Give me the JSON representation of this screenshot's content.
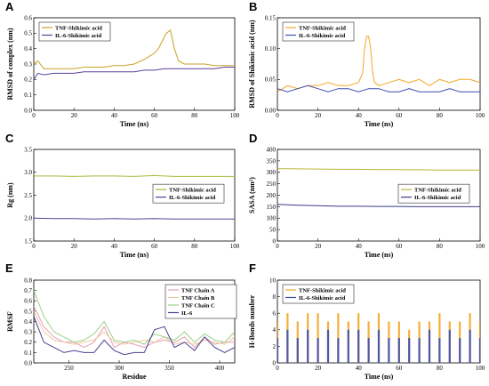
{
  "colors": {
    "tnf": "#c9a227",
    "il6": "#5a3f9e",
    "tnf_c": "#a8b83a",
    "sasa_tnf": "#b8b83a",
    "sasa_il6": "#3a3a8a",
    "tnf_bright": "#f5a623",
    "il6_hbond": "#3b4fb0",
    "chainA": "#e3a0b8",
    "chainB": "#f0c8a0",
    "chainC": "#9bd08a",
    "il6_rmsf": "#4a3f8f"
  },
  "chart_data": [
    {
      "panel": "A",
      "type": "line",
      "xlabel": "Time (ns)",
      "ylabel": "RMSD of complex (nm)",
      "xlim": [
        0,
        100
      ],
      "ylim": [
        0,
        0.6
      ],
      "xticks": [
        0,
        20,
        40,
        60,
        80,
        100
      ],
      "yticks": [
        0.0,
        0.1,
        0.2,
        0.3,
        0.4,
        0.5,
        0.6
      ],
      "legend_position": "top-left",
      "series": [
        {
          "name": "TNF-Shikimic acid",
          "color_key": "tnf",
          "x": [
            0,
            2,
            5,
            10,
            15,
            20,
            25,
            30,
            35,
            40,
            45,
            50,
            55,
            60,
            62,
            64,
            66,
            68,
            70,
            72,
            75,
            80,
            85,
            90,
            95,
            100
          ],
          "y": [
            0.3,
            0.32,
            0.27,
            0.27,
            0.27,
            0.27,
            0.28,
            0.28,
            0.28,
            0.29,
            0.29,
            0.3,
            0.33,
            0.37,
            0.4,
            0.45,
            0.5,
            0.52,
            0.4,
            0.32,
            0.3,
            0.3,
            0.3,
            0.29,
            0.29,
            0.29
          ]
        },
        {
          "name": "IL-6-Shikimic acid",
          "color_key": "il6",
          "x": [
            0,
            2,
            5,
            10,
            15,
            20,
            25,
            30,
            35,
            40,
            45,
            50,
            55,
            60,
            65,
            70,
            75,
            80,
            85,
            90,
            95,
            100
          ],
          "y": [
            0.2,
            0.24,
            0.23,
            0.24,
            0.24,
            0.24,
            0.25,
            0.25,
            0.25,
            0.25,
            0.25,
            0.25,
            0.26,
            0.26,
            0.27,
            0.27,
            0.27,
            0.27,
            0.27,
            0.27,
            0.28,
            0.28
          ]
        }
      ]
    },
    {
      "panel": "B",
      "type": "line",
      "xlabel": "Time (ns)",
      "ylabel": "RMSD of Shikimic acid (nm)",
      "xlim": [
        0,
        100
      ],
      "ylim": [
        0,
        0.15
      ],
      "xticks": [
        0,
        20,
        40,
        60,
        80,
        100
      ],
      "yticks": [
        0.0,
        0.05,
        0.1,
        0.15
      ],
      "legend_position": "top-left",
      "series": [
        {
          "name": "TNF-Shikimic acid",
          "color_key": "tnf_bright",
          "x": [
            0,
            5,
            10,
            15,
            20,
            25,
            30,
            35,
            40,
            42,
            43,
            44,
            45,
            46,
            47,
            48,
            50,
            55,
            60,
            65,
            70,
            75,
            80,
            85,
            90,
            95,
            100
          ],
          "y": [
            0.03,
            0.04,
            0.035,
            0.04,
            0.04,
            0.045,
            0.04,
            0.04,
            0.045,
            0.06,
            0.1,
            0.12,
            0.12,
            0.1,
            0.06,
            0.045,
            0.04,
            0.045,
            0.05,
            0.045,
            0.05,
            0.04,
            0.05,
            0.045,
            0.05,
            0.05,
            0.045
          ]
        },
        {
          "name": "IL-6-Shikimic acid",
          "color_key": "il6_hbond",
          "x": [
            0,
            5,
            10,
            15,
            20,
            25,
            30,
            35,
            40,
            45,
            50,
            55,
            60,
            65,
            70,
            75,
            80,
            85,
            90,
            95,
            100
          ],
          "y": [
            0.035,
            0.03,
            0.035,
            0.04,
            0.035,
            0.03,
            0.035,
            0.035,
            0.03,
            0.035,
            0.035,
            0.03,
            0.03,
            0.035,
            0.03,
            0.03,
            0.03,
            0.035,
            0.03,
            0.03,
            0.03
          ]
        }
      ]
    },
    {
      "panel": "C",
      "type": "line",
      "xlabel": "Time (ns)",
      "ylabel": "Rg (nm)",
      "xlim": [
        0,
        100
      ],
      "ylim": [
        1.5,
        3.5
      ],
      "xticks": [
        0,
        20,
        40,
        60,
        80,
        100
      ],
      "yticks": [
        1.5,
        2.0,
        2.5,
        3.0,
        3.5
      ],
      "legend_position": "center-right",
      "series": [
        {
          "name": "TNF-Shikimic acid",
          "color_key": "tnf_c",
          "x": [
            0,
            10,
            20,
            30,
            40,
            50,
            60,
            70,
            80,
            90,
            100
          ],
          "y": [
            2.92,
            2.92,
            2.91,
            2.92,
            2.92,
            2.91,
            2.93,
            2.91,
            2.91,
            2.91,
            2.91
          ]
        },
        {
          "name": "IL-6-Shikimic acid",
          "color_key": "il6",
          "x": [
            0,
            10,
            20,
            30,
            40,
            50,
            60,
            70,
            80,
            90,
            100
          ],
          "y": [
            2.0,
            1.99,
            1.99,
            1.98,
            1.99,
            1.98,
            1.99,
            1.98,
            1.98,
            1.98,
            1.98
          ]
        }
      ]
    },
    {
      "panel": "D",
      "type": "line",
      "xlabel": "Time (ns)",
      "ylabel": "SASA (nm²)",
      "xlim": [
        0,
        100
      ],
      "ylim": [
        0,
        400
      ],
      "xticks": [
        0,
        20,
        40,
        60,
        80,
        100
      ],
      "yticks": [
        0,
        50,
        100,
        150,
        200,
        250,
        300,
        350,
        400
      ],
      "legend_position": "center-right",
      "series": [
        {
          "name": "TNF-Shikimic acid",
          "color_key": "sasa_tnf",
          "x": [
            0,
            10,
            20,
            30,
            40,
            50,
            60,
            70,
            80,
            90,
            100
          ],
          "y": [
            316,
            315,
            314,
            313,
            313,
            312,
            312,
            311,
            310,
            310,
            310
          ]
        },
        {
          "name": "IL-6-Shikimic acid",
          "color_key": "sasa_il6",
          "x": [
            0,
            10,
            20,
            30,
            40,
            50,
            60,
            70,
            80,
            90,
            100
          ],
          "y": [
            160,
            156,
            154,
            152,
            152,
            151,
            151,
            150,
            150,
            150,
            150
          ]
        }
      ]
    },
    {
      "panel": "E",
      "type": "line",
      "xlabel": "Residue",
      "ylabel": "RMSF",
      "xlim": [
        215,
        415
      ],
      "ylim": [
        0,
        0.8
      ],
      "xticks": [
        250,
        300,
        350,
        400
      ],
      "yticks": [
        0.0,
        0.1,
        0.2,
        0.3,
        0.4,
        0.5,
        0.6,
        0.7,
        0.8
      ],
      "legend_position": "top-right",
      "series": [
        {
          "name": "TNF Chain A",
          "color_key": "chainA",
          "x": [
            215,
            225,
            235,
            245,
            255,
            265,
            275,
            285,
            295,
            305,
            315,
            325,
            335,
            345,
            355,
            365,
            375,
            385,
            395,
            405,
            415
          ],
          "y": [
            0.55,
            0.35,
            0.25,
            0.2,
            0.2,
            0.15,
            0.2,
            0.35,
            0.15,
            0.2,
            0.18,
            0.15,
            0.2,
            0.22,
            0.2,
            0.25,
            0.15,
            0.25,
            0.18,
            0.2,
            0.2
          ]
        },
        {
          "name": "TNF Chain B",
          "color_key": "chainB",
          "x": [
            215,
            225,
            235,
            245,
            255,
            265,
            275,
            285,
            295,
            305,
            315,
            325,
            335,
            345,
            355,
            365,
            375,
            385,
            395,
            405,
            415
          ],
          "y": [
            0.5,
            0.3,
            0.22,
            0.2,
            0.18,
            0.2,
            0.22,
            0.3,
            0.2,
            0.18,
            0.2,
            0.22,
            0.2,
            0.25,
            0.18,
            0.2,
            0.18,
            0.22,
            0.2,
            0.18,
            0.25
          ]
        },
        {
          "name": "TNF Chain C",
          "color_key": "chainC",
          "x": [
            215,
            225,
            235,
            245,
            255,
            265,
            275,
            285,
            295,
            305,
            315,
            325,
            335,
            345,
            355,
            365,
            375,
            385,
            395,
            405,
            415
          ],
          "y": [
            0.7,
            0.45,
            0.3,
            0.25,
            0.2,
            0.22,
            0.28,
            0.4,
            0.22,
            0.2,
            0.22,
            0.18,
            0.28,
            0.25,
            0.22,
            0.3,
            0.2,
            0.28,
            0.22,
            0.2,
            0.3
          ]
        },
        {
          "name": "IL-6",
          "color_key": "il6_rmsf",
          "x": [
            215,
            225,
            235,
            245,
            255,
            265,
            275,
            285,
            295,
            305,
            315,
            325,
            335,
            345,
            355,
            365,
            375,
            385,
            395,
            405,
            415
          ],
          "y": [
            0.45,
            0.2,
            0.15,
            0.1,
            0.12,
            0.1,
            0.1,
            0.22,
            0.12,
            0.08,
            0.1,
            0.1,
            0.32,
            0.35,
            0.15,
            0.2,
            0.12,
            0.25,
            0.15,
            0.1,
            0.15
          ]
        }
      ]
    },
    {
      "panel": "F",
      "type": "bar",
      "xlabel": "Time (ns)",
      "ylabel": "H-Bonds number",
      "xlim": [
        0,
        100
      ],
      "ylim": [
        0,
        10
      ],
      "xticks": [
        0,
        20,
        40,
        60,
        80,
        100
      ],
      "yticks": [
        0,
        2,
        4,
        6,
        8,
        10
      ],
      "legend_position": "top-left",
      "series": [
        {
          "name": "TNF-Shikimic acid",
          "color_key": "tnf_bright",
          "x": [
            0,
            5,
            10,
            15,
            20,
            25,
            30,
            35,
            40,
            45,
            50,
            55,
            60,
            65,
            70,
            75,
            80,
            85,
            90,
            95,
            100
          ],
          "y": [
            5,
            6,
            5,
            6,
            6,
            5,
            6,
            5,
            6,
            5,
            6,
            5,
            5,
            4,
            5,
            5,
            6,
            5,
            5,
            6,
            5
          ]
        },
        {
          "name": "IL-6-Shikimic acid",
          "color_key": "il6_hbond",
          "x": [
            0,
            5,
            10,
            15,
            20,
            25,
            30,
            35,
            40,
            45,
            50,
            55,
            60,
            65,
            70,
            75,
            80,
            85,
            90,
            95,
            100
          ],
          "y": [
            3,
            4,
            3,
            4,
            3,
            4,
            3,
            4,
            4,
            3,
            4,
            3,
            3,
            3,
            3,
            4,
            3,
            4,
            3,
            4,
            3
          ]
        }
      ]
    }
  ]
}
